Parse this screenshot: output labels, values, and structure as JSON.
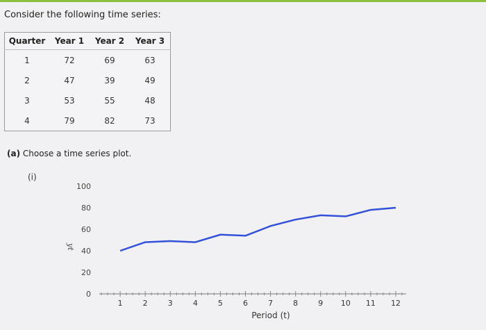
{
  "intro": "Consider the following time series:",
  "table": {
    "headers": [
      "Quarter",
      "Year 1",
      "Year 2",
      "Year 3"
    ],
    "rows": [
      [
        "1",
        "72",
        "69",
        "63"
      ],
      [
        "2",
        "47",
        "39",
        "49"
      ],
      [
        "3",
        "53",
        "55",
        "48"
      ],
      [
        "4",
        "79",
        "82",
        "73"
      ]
    ]
  },
  "question": {
    "part": "(a)",
    "text": "Choose a time series plot."
  },
  "option_label": "(i)",
  "colors": {
    "line": "#3350d8",
    "accent_bar": "#8bbf3f"
  },
  "chart_data": {
    "type": "line",
    "xlabel": "Period (t)",
    "ylabel": "yt",
    "x": [
      1,
      2,
      3,
      4,
      5,
      6,
      7,
      8,
      9,
      10,
      11,
      12
    ],
    "y_ticks": [
      0,
      20,
      40,
      60,
      80,
      100
    ],
    "x_ticks": [
      "1",
      "2",
      "3",
      "4",
      "5",
      "6",
      "7",
      "8",
      "9",
      "10",
      "11",
      "12"
    ],
    "xlim": [
      0,
      12
    ],
    "ylim": [
      0,
      100
    ],
    "series": [
      {
        "values": [
          40,
          48,
          49,
          48,
          55,
          54,
          63,
          69,
          73,
          72,
          78,
          80
        ]
      }
    ]
  }
}
